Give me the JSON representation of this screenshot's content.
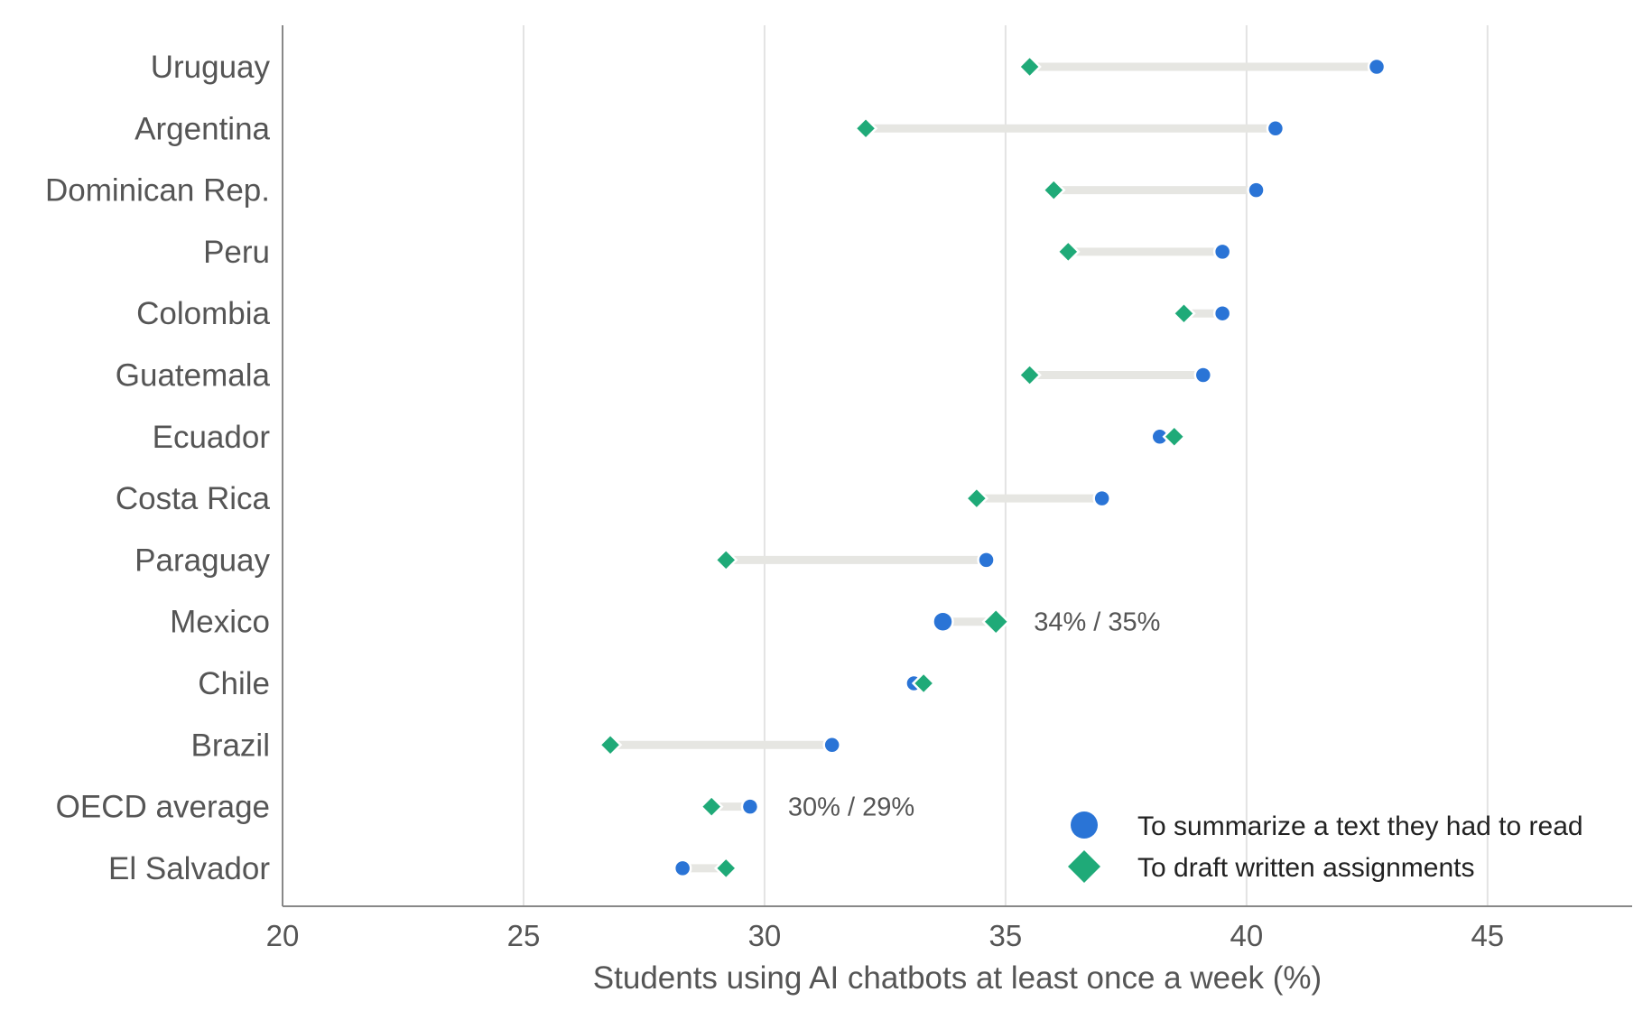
{
  "chart_data": {
    "type": "scatter",
    "subtype": "dumbbell",
    "title": "",
    "xlabel": "Students using AI chatbots at least once a week (%)",
    "ylabel": "",
    "xlim": [
      20,
      48
    ],
    "xticks": [
      20,
      25,
      30,
      35,
      40,
      45
    ],
    "grid": "vertical",
    "legend_position": "bottom-right",
    "categories": [
      "Uruguay",
      "Argentina",
      "Dominican Rep.",
      "Peru",
      "Colombia",
      "Guatemala",
      "Ecuador",
      "Costa Rica",
      "Paraguay",
      "Mexico",
      "Chile",
      "Brazil",
      "OECD average",
      "El Salvador"
    ],
    "highlight": {
      "Mexico": "#111111",
      "OECD average": "#e8693a"
    },
    "series": [
      {
        "name": "To summarize a text they had to read",
        "marker": "circle",
        "color": "#2a74d6",
        "values": [
          42.7,
          40.6,
          40.2,
          39.5,
          39.5,
          39.1,
          38.2,
          37.0,
          34.6,
          33.7,
          33.1,
          31.4,
          29.7,
          28.3
        ]
      },
      {
        "name": "To draft written assignments",
        "marker": "diamond",
        "color": "#1faa78",
        "values": [
          35.5,
          32.1,
          36.0,
          36.3,
          38.7,
          35.5,
          38.5,
          34.4,
          29.2,
          34.8,
          33.3,
          26.8,
          28.9,
          29.2
        ]
      }
    ],
    "annotations": [
      {
        "category": "Mexico",
        "text": "34% / 35%"
      },
      {
        "category": "OECD average",
        "text": "30% / 29%"
      }
    ],
    "connector_color": "#e6e6e2"
  }
}
